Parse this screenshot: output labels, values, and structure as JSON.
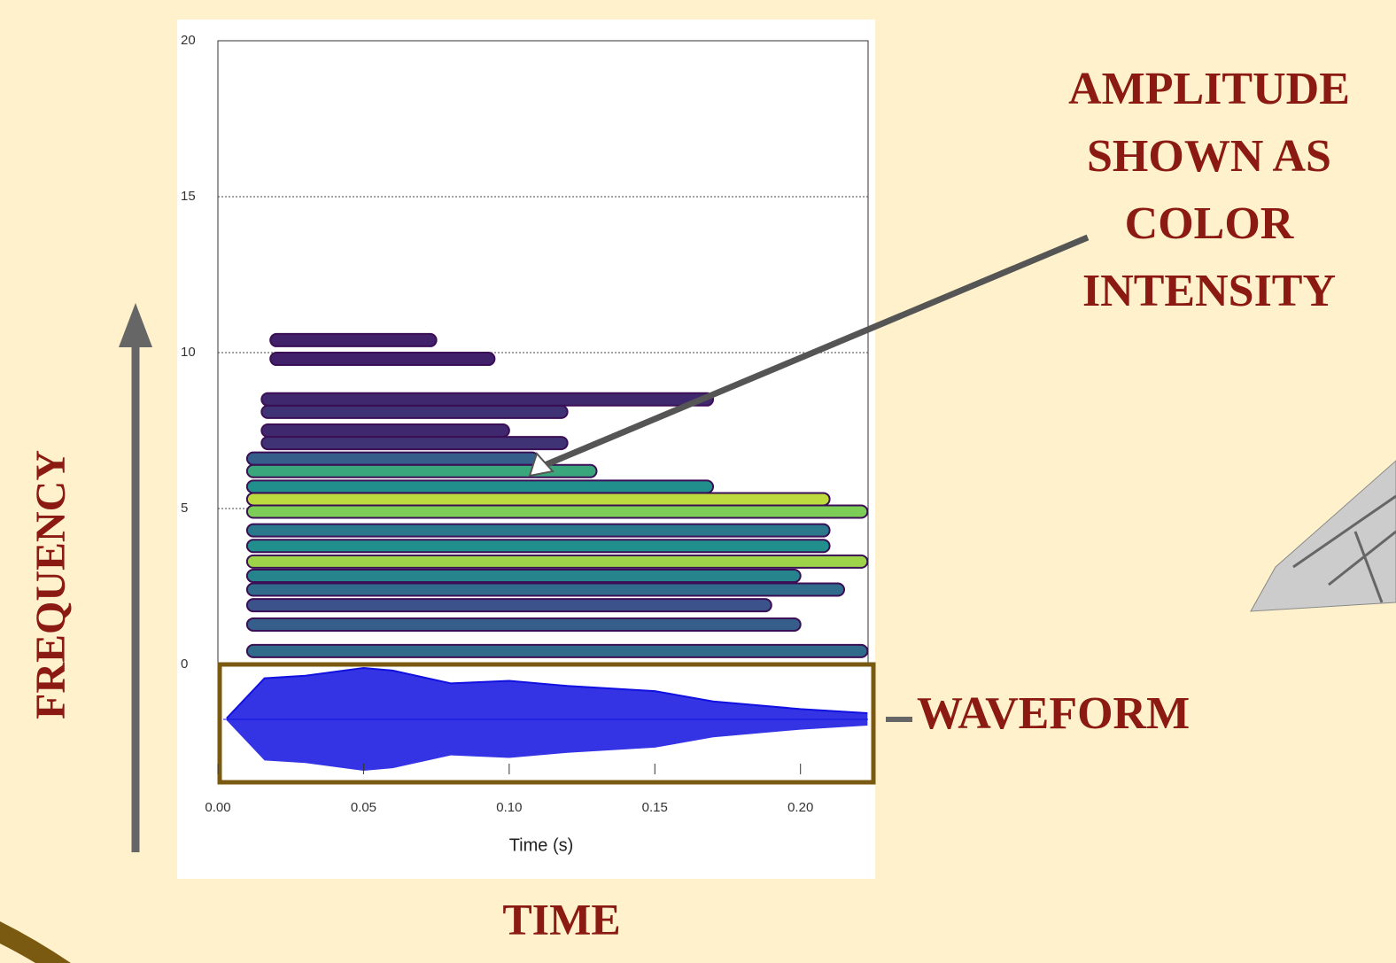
{
  "chart_data": {
    "type": "spectrogram",
    "x_label": "Time (s)",
    "xlim": [
      0,
      0.2232
    ],
    "ylim": [
      0,
      20
    ],
    "xticks": [
      {
        "value": 0,
        "label": "0.00"
      },
      {
        "value": 0.05,
        "label": "0.05"
      },
      {
        "value": 0.1,
        "label": "0.10"
      },
      {
        "value": 0.15,
        "label": "0.15"
      },
      {
        "value": 0.2,
        "label": "0.20"
      }
    ],
    "yticks": [
      0,
      5,
      10,
      15,
      20
    ],
    "grid_ticks": [
      5,
      10,
      15
    ],
    "bands": [
      {
        "freq": 0.43,
        "start": 0.01,
        "end": 0.223,
        "intensity": 0.35
      },
      {
        "freq": 1.28,
        "start": 0.01,
        "end": 0.2,
        "intensity": 0.3
      },
      {
        "freq": 1.9,
        "start": 0.01,
        "end": 0.19,
        "intensity": 0.25
      },
      {
        "freq": 2.4,
        "start": 0.01,
        "end": 0.215,
        "intensity": 0.35
      },
      {
        "freq": 2.84,
        "start": 0.01,
        "end": 0.2,
        "intensity": 0.45
      },
      {
        "freq": 3.3,
        "start": 0.01,
        "end": 0.223,
        "intensity": 0.85
      },
      {
        "freq": 3.8,
        "start": 0.01,
        "end": 0.21,
        "intensity": 0.5
      },
      {
        "freq": 4.3,
        "start": 0.01,
        "end": 0.21,
        "intensity": 0.4
      },
      {
        "freq": 4.9,
        "start": 0.01,
        "end": 0.223,
        "intensity": 0.8
      },
      {
        "freq": 5.3,
        "start": 0.01,
        "end": 0.21,
        "intensity": 0.9
      },
      {
        "freq": 5.7,
        "start": 0.01,
        "end": 0.17,
        "intensity": 0.5
      },
      {
        "freq": 6.2,
        "start": 0.01,
        "end": 0.13,
        "intensity": 0.6
      },
      {
        "freq": 6.6,
        "start": 0.01,
        "end": 0.11,
        "intensity": 0.3
      },
      {
        "freq": 7.1,
        "start": 0.015,
        "end": 0.12,
        "intensity": 0.15
      },
      {
        "freq": 7.5,
        "start": 0.015,
        "end": 0.1,
        "intensity": 0.12
      },
      {
        "freq": 8.1,
        "start": 0.015,
        "end": 0.12,
        "intensity": 0.15
      },
      {
        "freq": 8.5,
        "start": 0.015,
        "end": 0.17,
        "intensity": 0.12
      },
      {
        "freq": 9.8,
        "start": 0.018,
        "end": 0.095,
        "intensity": 0.1
      },
      {
        "freq": 10.4,
        "start": 0.018,
        "end": 0.075,
        "intensity": 0.1
      }
    ],
    "waveform": {
      "x": [
        0.003,
        0.016,
        0.03,
        0.05,
        0.06,
        0.08,
        0.1,
        0.12,
        0.15,
        0.17,
        0.2,
        0.223
      ],
      "values": [
        0.02,
        0.8,
        0.85,
        1,
        0.95,
        0.7,
        0.75,
        0.65,
        0.55,
        0.35,
        0.2,
        0.12
      ],
      "color": "#1010e0"
    }
  },
  "annotations": {
    "y_axis": "FREQUENCY",
    "x_axis": "TIME",
    "amplitude": [
      "AMPLITUDE",
      "SHOWN AS",
      "COLOR",
      "INTENSITY"
    ],
    "waveform": "WAVEFORM"
  }
}
